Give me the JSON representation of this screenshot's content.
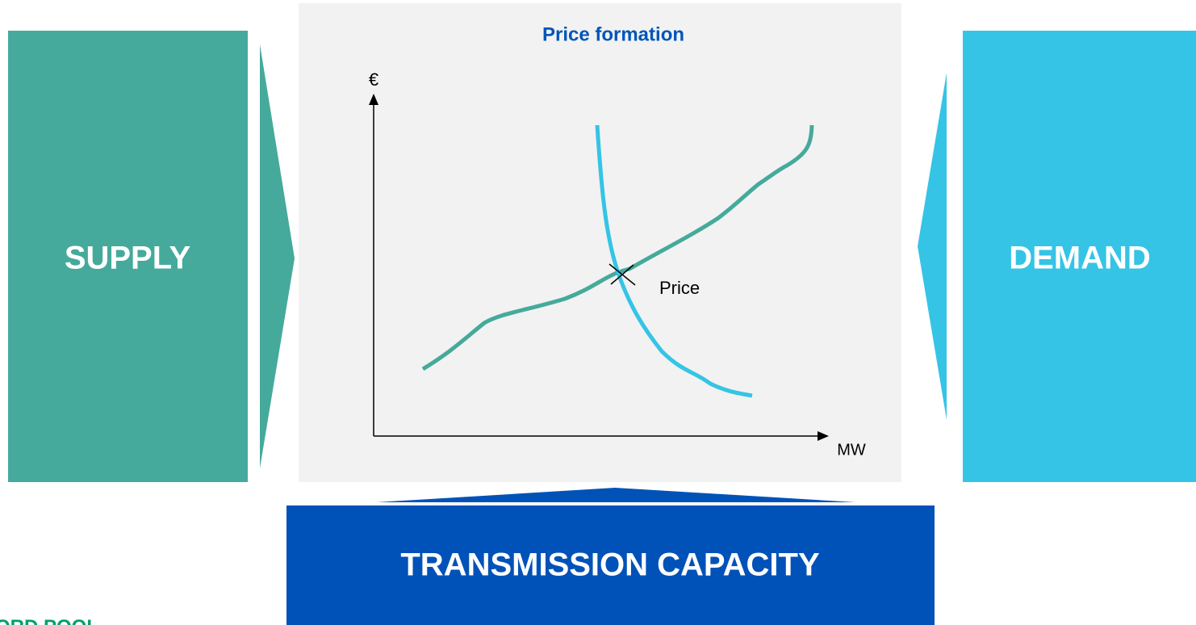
{
  "boxes": {
    "supply": "SUPPLY",
    "demand": "DEMAND",
    "transmission": "TRANSMISSION CAPACITY"
  },
  "chart": {
    "title": "Price formation",
    "y_axis_label": "€",
    "x_axis_label": "MW",
    "point_label": "Price"
  },
  "logo": "ORD POOL"
}
